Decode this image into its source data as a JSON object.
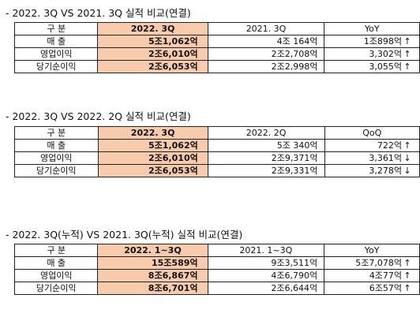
{
  "sections": [
    {
      "title": "- 2022. 3Q VS 2021. 3Q 실적 비교(연결)",
      "headers": [
        "구 분",
        "2022. 3Q",
        "2021. 3Q",
        "YoY"
      ],
      "rows": [
        {
          "label": "매 출",
          "current": "5조1,062억",
          "previous": "4조 164억",
          "change": "1조898억",
          "arrow": "↑"
        },
        {
          "label": "영업이익",
          "current": "2조6,010억",
          "previous": "2조2,708억",
          "change": "3,302억",
          "arrow": "↑"
        },
        {
          "label": "당기순이익",
          "current": "2조6,053억",
          "previous": "2조2,998억",
          "change": "3,055억",
          "arrow": "↑"
        }
      ]
    },
    {
      "title": "- 2022. 3Q VS 2022. 2Q 실적 비교(연결)",
      "headers": [
        "구 분",
        "2022. 3Q",
        "2022. 2Q",
        "QoQ"
      ],
      "rows": [
        {
          "label": "매 출",
          "current": "5조1,062억",
          "previous": "5조 340억",
          "change": "722억",
          "arrow": "↑"
        },
        {
          "label": "영업이익",
          "current": "2조6,010억",
          "previous": "2조9,371억",
          "change": "3,361억",
          "arrow": "↓"
        },
        {
          "label": "당기순이익",
          "current": "2조6,053억",
          "previous": "2조9,331억",
          "change": "3,278억",
          "arrow": "↓"
        }
      ]
    },
    {
      "title": "- 2022. 3Q(누적) VS 2021. 3Q(누적) 실적 비교(연결)",
      "headers": [
        "구 분",
        "2022. 1~3Q",
        "2021. 1~3Q",
        "YoY"
      ],
      "rows": [
        {
          "label": "매 출",
          "current": "15조589억",
          "previous": "9조3,511억",
          "change": "5조7,078억",
          "arrow": "↑"
        },
        {
          "label": "영업이익",
          "current": "8조6,867억",
          "previous": "4조6,790억",
          "change": "4조77억",
          "arrow": "↑"
        },
        {
          "label": "당기순이익",
          "current": "8조6,701억",
          "previous": "2조6,644억",
          "change": "6조57억",
          "arrow": "↑"
        }
      ]
    }
  ]
}
